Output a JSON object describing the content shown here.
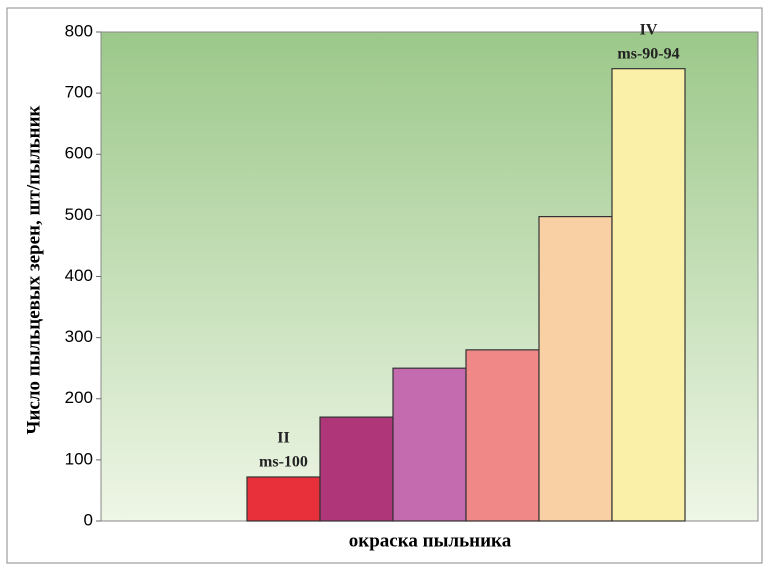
{
  "chart_data": {
    "type": "bar",
    "ylabel": "Число пыльцевых зерен, шт/пыльник",
    "xlabel": "окраска пыльника",
    "categories": [
      null,
      null,
      null,
      null,
      null,
      null
    ],
    "values": [
      72,
      170,
      250,
      280,
      498,
      740
    ],
    "colors": [
      "#e8303a",
      "#b0367a",
      "#c46aae",
      "#f08888",
      "#f8d0a4",
      "#fbf0a8"
    ],
    "annotations": [
      [
        "II",
        "ms-100"
      ],
      [
        "IV",
        "ms-90-94"
      ]
    ],
    "ylim": [
      0,
      800
    ],
    "yticks": [
      0,
      100,
      200,
      300,
      400,
      500,
      600,
      700,
      800
    ]
  }
}
